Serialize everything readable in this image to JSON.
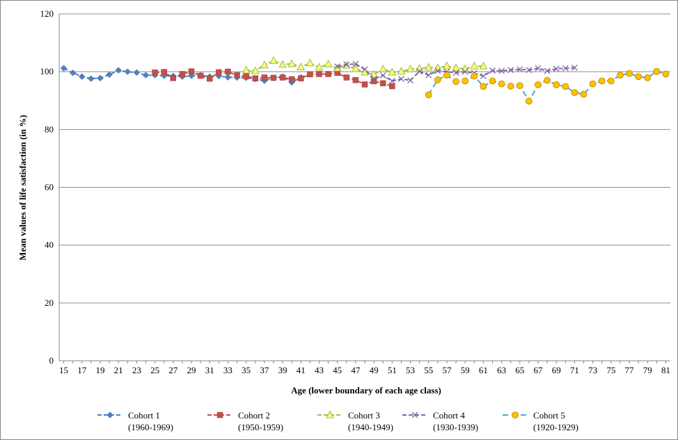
{
  "chart_data": {
    "type": "line",
    "xlabel": "Age (lower boundary of each age class)",
    "ylabel": "Mean values of life satisfaction (in %)",
    "ylim": [
      0,
      120
    ],
    "yticks": [
      0,
      20,
      40,
      60,
      80,
      100,
      120
    ],
    "xlim": [
      15,
      81
    ],
    "xticks": [
      15,
      17,
      19,
      21,
      23,
      25,
      27,
      29,
      31,
      33,
      35,
      37,
      39,
      41,
      43,
      45,
      47,
      49,
      51,
      53,
      55,
      57,
      59,
      61,
      63,
      65,
      67,
      69,
      71,
      73,
      75,
      77,
      79,
      81
    ],
    "grid": "horizontal",
    "legend_position": "bottom",
    "series": [
      {
        "name": "Cohort 1",
        "period": "(1960-1969)",
        "color": "#4F81BD",
        "marker": "diamond",
        "dash": "6,3",
        "x": [
          15,
          16,
          17,
          18,
          19,
          20,
          21,
          22,
          23,
          24,
          25,
          26,
          27,
          28,
          29,
          30,
          31,
          32,
          33,
          34,
          35,
          36,
          37,
          38,
          39,
          40,
          41
        ],
        "y": [
          101.2,
          99.6,
          98.3,
          97.6,
          97.8,
          99.0,
          100.5,
          100.0,
          99.7,
          98.8,
          98.8,
          98.6,
          98.5,
          98.3,
          98.6,
          98.8,
          98.3,
          98.5,
          98.1,
          98.0,
          97.9,
          97.5,
          96.9,
          97.8,
          98.3,
          96.3,
          98.0
        ]
      },
      {
        "name": "Cohort 2",
        "period": "(1950-1959)",
        "color": "#C0504D",
        "marker": "square",
        "dash": "6,3",
        "x": [
          25,
          26,
          27,
          28,
          29,
          30,
          31,
          32,
          33,
          34,
          35,
          36,
          37,
          38,
          39,
          40,
          41,
          42,
          43,
          44,
          45,
          46,
          47,
          48,
          49,
          50,
          51
        ],
        "y": [
          99.7,
          99.9,
          97.8,
          99.2,
          100.1,
          98.6,
          97.6,
          99.8,
          100.0,
          98.8,
          98.4,
          97.7,
          98.0,
          97.9,
          98.0,
          97.4,
          97.7,
          99.1,
          99.2,
          99.2,
          99.6,
          98.0,
          97.1,
          95.6,
          96.7,
          96.0,
          95.0
        ]
      },
      {
        "name": "Cohort 3",
        "period": "(1940-1949)",
        "color": "#9BBB59",
        "marker": "triangle",
        "dash": "6,3",
        "x": [
          35,
          36,
          37,
          38,
          39,
          40,
          41,
          42,
          43,
          44,
          45,
          46,
          47,
          48,
          49,
          50,
          51,
          52,
          53,
          54,
          55,
          56,
          57,
          58,
          59,
          60,
          61
        ],
        "y": [
          100.5,
          100.3,
          102.3,
          103.8,
          102.5,
          102.7,
          101.6,
          103.0,
          101.5,
          102.6,
          101.2,
          102.2,
          101.0,
          99.8,
          99.0,
          100.9,
          99.8,
          100.1,
          100.9,
          101.1,
          101.5,
          101.3,
          102.0,
          101.3,
          101.0,
          101.9,
          101.9
        ]
      },
      {
        "name": "Cohort 4",
        "period": "(1930-1939)",
        "color": "#8064A2",
        "marker": "x",
        "dash": "6,3",
        "x": [
          45,
          46,
          47,
          48,
          49,
          50,
          51,
          52,
          53,
          54,
          55,
          56,
          57,
          58,
          59,
          60,
          61,
          62,
          63,
          64,
          65,
          66,
          67,
          68,
          69,
          70,
          71
        ],
        "y": [
          101.8,
          102.5,
          102.7,
          100.8,
          97.5,
          98.7,
          96.8,
          97.5,
          97.0,
          100.1,
          98.8,
          100.3,
          100.0,
          99.6,
          100.0,
          99.5,
          98.5,
          100.4,
          100.3,
          100.6,
          100.8,
          100.6,
          101.2,
          100.3,
          101.0,
          101.2,
          101.4
        ]
      },
      {
        "name": "Cohort 5",
        "period": "(1920-1929)",
        "color": "#4BACC6",
        "marker": "circle",
        "markerFill": "#FFC000",
        "dash": "8,5",
        "x": [
          55,
          56,
          57,
          58,
          59,
          60,
          61,
          62,
          63,
          64,
          65,
          66,
          67,
          68,
          69,
          70,
          71,
          72,
          73,
          74,
          75,
          76,
          77,
          78,
          79,
          80,
          81
        ],
        "y": [
          92.0,
          97.2,
          98.8,
          96.6,
          96.8,
          98.5,
          94.9,
          96.8,
          95.8,
          95.0,
          95.2,
          89.8,
          95.5,
          97.0,
          95.5,
          94.9,
          92.8,
          92.2,
          95.8,
          96.8,
          96.8,
          98.8,
          99.4,
          98.3,
          97.9,
          100.1,
          99.2
        ]
      }
    ]
  }
}
